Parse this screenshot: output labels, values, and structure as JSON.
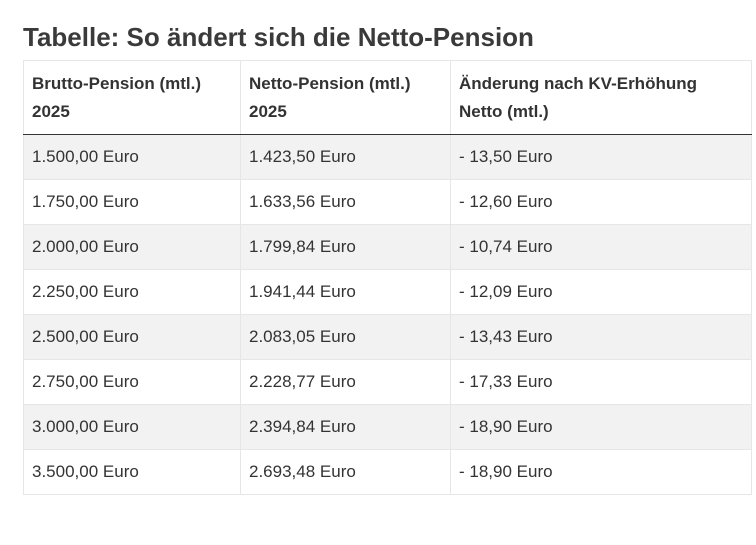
{
  "title": "Tabelle: So ändert sich die Netto-Pension",
  "table": {
    "headers": [
      {
        "line1": "Brutto-Pension (mtl.)",
        "line2": "2025"
      },
      {
        "line1": "Netto-Pension (mtl.)",
        "line2": "2025"
      },
      {
        "line1": "Änderung nach KV-Erhöhung",
        "line2": "Netto (mtl.)"
      }
    ],
    "rows": [
      [
        "1.500,00 Euro",
        "1.423,50 Euro",
        "- 13,50 Euro"
      ],
      [
        "1.750,00 Euro",
        "1.633,56 Euro",
        "- 12,60 Euro"
      ],
      [
        "2.000,00 Euro",
        "1.799,84 Euro",
        "- 10,74 Euro"
      ],
      [
        "2.250,00 Euro",
        "1.941,44 Euro",
        "- 12,09 Euro"
      ],
      [
        "2.500,00 Euro",
        "2.083,05 Euro",
        "- 13,43 Euro"
      ],
      [
        "2.750,00 Euro",
        "2.228,77 Euro",
        "- 17,33 Euro"
      ],
      [
        "3.000,00 Euro",
        "2.394,84 Euro",
        "- 18,90 Euro"
      ],
      [
        "3.500,00 Euro",
        "2.693,48 Euro",
        "- 18,90 Euro"
      ]
    ]
  }
}
